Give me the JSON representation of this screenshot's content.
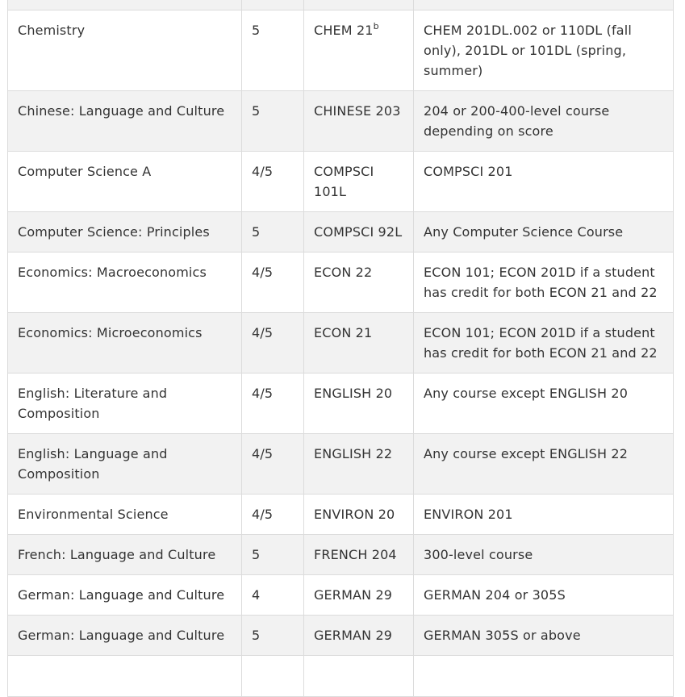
{
  "table": {
    "rows": [
      {
        "exam": "",
        "score": "",
        "course": "",
        "sup": "",
        "credit": ""
      },
      {
        "exam": "Chemistry",
        "score": "5",
        "course": "CHEM 21",
        "sup": "b",
        "credit": "CHEM 201DL.002 or 110DL (fall only), 201DL or 101DL  (spring, summer)"
      },
      {
        "exam": "Chinese: Language and Culture",
        "score": "5",
        "course": "CHINESE 203",
        "sup": "",
        "credit": "204 or 200-400-level course depending on score"
      },
      {
        "exam": "Computer Science A",
        "score": "4/5",
        "course": "COMPSCI 101L",
        "sup": "",
        "credit": "COMPSCI 201"
      },
      {
        "exam": "Computer Science: Principles",
        "score": "5",
        "course": "COMPSCI 92L",
        "sup": "",
        "credit": "Any Computer Science Course"
      },
      {
        "exam": "Economics: Macroeconomics",
        "score": "4/5",
        "course": "ECON 22",
        "sup": "",
        "credit": "ECON 101; ECON 201D if a student has credit for both ECON 21 and 22"
      },
      {
        "exam": "Economics: Microeconomics",
        "score": "4/5",
        "course": "ECON 21",
        "sup": "",
        "credit": "ECON 101; ECON 201D if a student has credit for both ECON 21 and 22"
      },
      {
        "exam": "English: Literature and Composition",
        "score": "4/5",
        "course": "ENGLISH 20",
        "sup": "",
        "credit": "Any course except ENGLISH 20"
      },
      {
        "exam": "English: Language and Composition",
        "score": "4/5",
        "course": "ENGLISH 22",
        "sup": "",
        "credit": "Any course except ENGLISH 22"
      },
      {
        "exam": "Environmental Science",
        "score": "4/5",
        "course": "ENVIRON 20",
        "sup": "",
        "credit": "ENVIRON 201"
      },
      {
        "exam": "French: Language and Culture",
        "score": "5",
        "course": "FRENCH 204",
        "sup": "",
        "credit": "300-level course"
      },
      {
        "exam": "German: Language and Culture",
        "score": "4",
        "course": "GERMAN 29",
        "sup": "",
        "credit": "GERMAN 204 or 305S"
      },
      {
        "exam": "German: Language and Culture",
        "score": "5",
        "course": "GERMAN 29",
        "sup": "",
        "credit": "GERMAN 305S or above"
      },
      {
        "exam": "",
        "score": "",
        "course": "",
        "sup": "",
        "credit": ""
      }
    ]
  },
  "colors": {
    "row_alt_background": "#f2f2f2",
    "row_background": "#ffffff",
    "border": "#dcdcdc",
    "text": "#333333"
  }
}
